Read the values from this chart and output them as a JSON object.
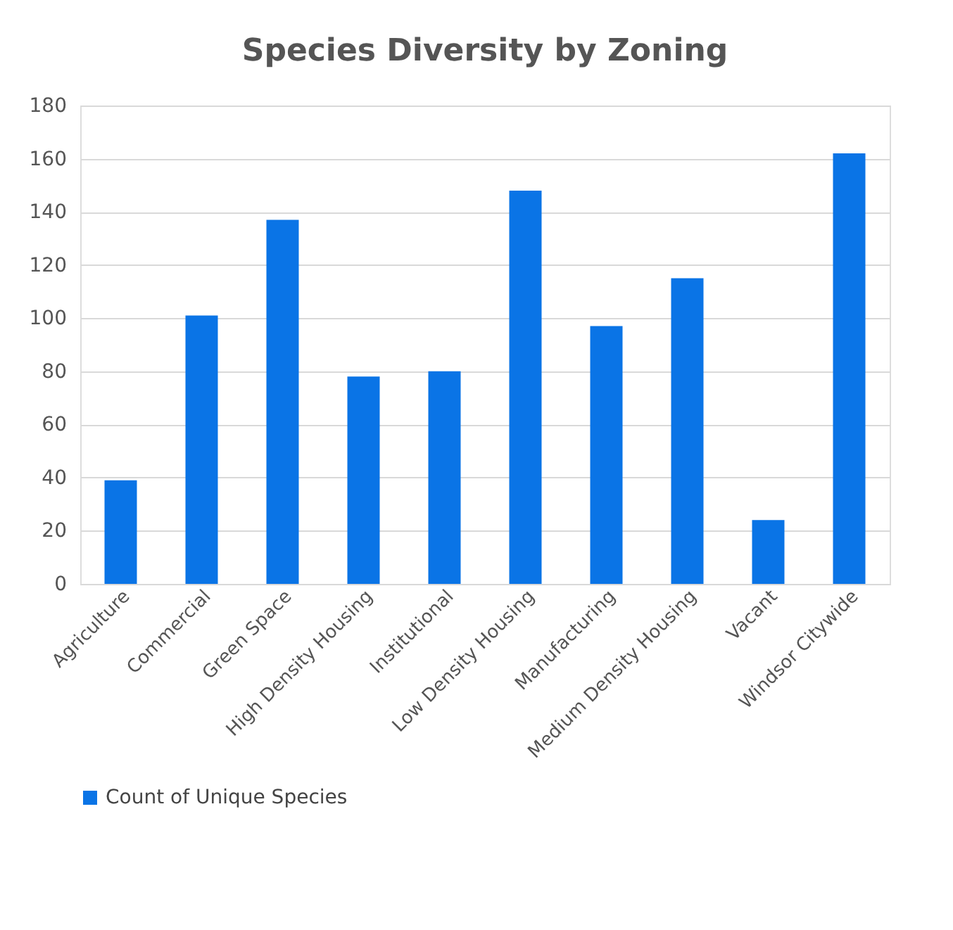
{
  "chart_data": {
    "type": "bar",
    "title": "Species Diversity by Zoning",
    "categories": [
      "Agriculture",
      "Commercial",
      "Green Space",
      "High Density Housing",
      "Institutional",
      "Low Density Housing",
      "Manufacturing",
      "Medium Density Housing",
      "Vacant",
      "Windsor Citywide"
    ],
    "series": [
      {
        "name": "Count of Unique Species",
        "color": "#0a74e6",
        "values": [
          39,
          101,
          137,
          78,
          80,
          148,
          97,
          115,
          24,
          162
        ]
      }
    ],
    "ylim": [
      0,
      180
    ],
    "yticks": [
      0,
      20,
      40,
      60,
      80,
      100,
      120,
      140,
      160,
      180
    ],
    "grid": "y",
    "legend": "bottom"
  }
}
